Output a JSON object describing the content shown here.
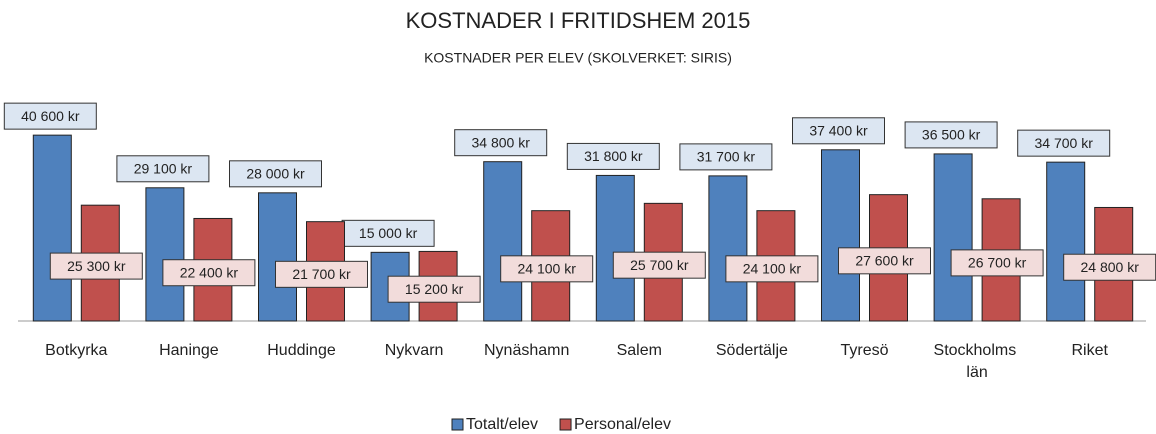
{
  "chart_data": {
    "type": "bar",
    "title": "KOSTNADER I FRITIDSHEM 2015",
    "subtitle": "KOSTNADER PER ELEV (SKOLVERKET: SIRIS)",
    "categories": [
      "Botkyrka",
      "Haninge",
      "Huddinge",
      "Nykvarn",
      "Nynäshamn",
      "Salem",
      "Södertälje",
      "Tyresö",
      "Stockholms län",
      "Riket"
    ],
    "series": [
      {
        "name": "Totalt/elev",
        "color": "#4f81bd",
        "label_fill": "#dce6f2",
        "values": [
          40600,
          29100,
          28000,
          15000,
          34800,
          31800,
          31700,
          37400,
          36500,
          34700
        ],
        "value_labels": [
          "40 600 kr",
          "29 100 kr",
          "28 000 kr",
          "15 000 kr",
          "34 800 kr",
          "31 800 kr",
          "31 700 kr",
          "37 400 kr",
          "36 500 kr",
          "34 700 kr"
        ]
      },
      {
        "name": "Personal/elev",
        "color": "#c0504d",
        "label_fill": "#f2dcdb",
        "values": [
          25300,
          22400,
          21700,
          15200,
          24100,
          25700,
          24100,
          27600,
          26700,
          24800
        ],
        "value_labels": [
          "25 300 kr",
          "22 400 kr",
          "21 700 kr",
          "15 200 kr",
          "24 100 kr",
          "25 700 kr",
          "24 100 kr",
          "27 600 kr",
          "26 700 kr",
          "24 800 kr"
        ]
      }
    ],
    "ylim": [
      0,
      45000
    ],
    "legend": "bottom"
  }
}
